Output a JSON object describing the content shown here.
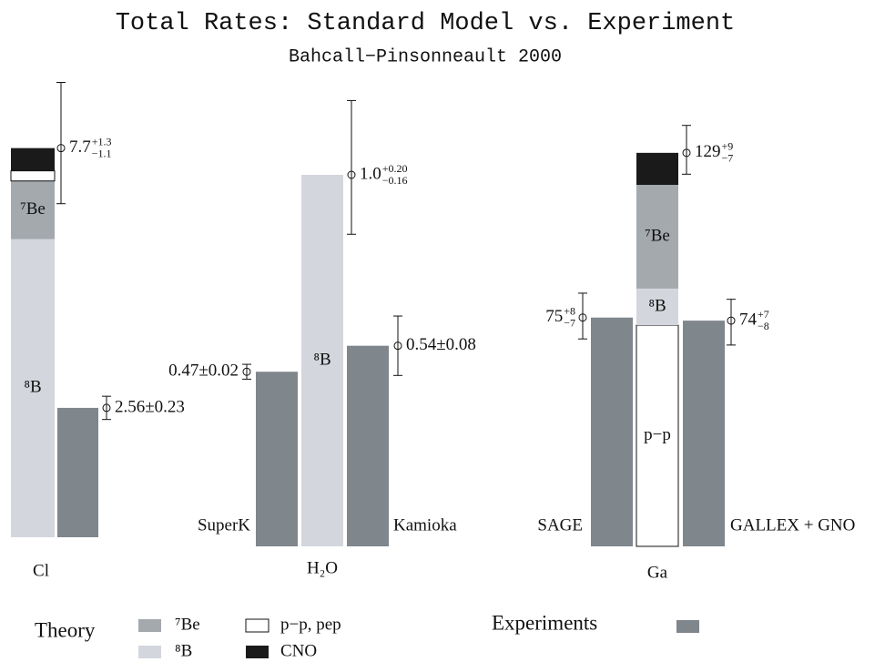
{
  "title": "Total Rates: Standard Model vs. Experiment",
  "subtitle": "Bahcall−Pinsonneault 2000",
  "legend": {
    "theory_label": "Theory",
    "experiments_label": "Experiments",
    "experiments_color": "#7f868c",
    "items": [
      {
        "name": "⁷Be",
        "color": "#a4a9ae"
      },
      {
        "name": "⁸B",
        "color": "#d3d6dc"
      },
      {
        "name": "p−p, pep",
        "color": "#ffffff"
      },
      {
        "name": "CNO",
        "color": "#1a1a1a"
      }
    ]
  },
  "chart_data": [
    {
      "type": "bar",
      "category": "Cl",
      "theory": {
        "segments": [
          {
            "name": "⁸B",
            "color": "#d3d6dc",
            "value": 5.9
          },
          {
            "name": "⁷Be",
            "color": "#a4a9ae",
            "value": 1.15
          },
          {
            "color": "#ffffff",
            "value": 0.2
          },
          {
            "color": "#1a1a1a",
            "value": 0.45
          }
        ],
        "total": 7.7,
        "errors": [
          1.3,
          1.1
        ],
        "error_labels": [
          "+1.3",
          "−1.1"
        ]
      },
      "experiments": [
        {
          "color": "#7f868c",
          "value": 2.56,
          "error": 0.23,
          "value_label": "2.56±0.23"
        }
      ]
    },
    {
      "type": "bar",
      "category": "H₂O",
      "theory": {
        "segments": [
          {
            "name": "⁸B",
            "color": "#d3d6dc",
            "value": 1.0
          }
        ],
        "total": 1.0,
        "value_label": "1.0",
        "errors": [
          0.2,
          0.16
        ],
        "error_labels": [
          "+0.20",
          "−0.16"
        ]
      },
      "experiments": [
        {
          "name": "SuperK",
          "color": "#7f868c",
          "value": 0.47,
          "error": 0.02,
          "value_label": "0.47±0.02"
        },
        {
          "name": "Kamioka",
          "color": "#7f868c",
          "value": 0.54,
          "error": 0.08,
          "value_label": "0.54±0.08"
        }
      ]
    },
    {
      "type": "bar",
      "category": "Ga",
      "theory": {
        "segments": [
          {
            "name": "p−p",
            "color": "#ffffff",
            "value": 72.5
          },
          {
            "name": "⁸B",
            "color": "#d3d6dc",
            "value": 12
          },
          {
            "name": "⁷Be",
            "color": "#a4a9ae",
            "value": 34
          },
          {
            "color": "#1a1a1a",
            "value": 10.5
          }
        ],
        "total": 129,
        "errors": [
          9,
          7
        ],
        "error_labels": [
          "+9",
          "−7"
        ]
      },
      "experiments": [
        {
          "name": "SAGE",
          "color": "#7f868c",
          "value": 75,
          "errors": [
            8,
            7
          ],
          "error_labels": [
            "+8",
            "−7"
          ]
        },
        {
          "name": "GALLEX + GNO",
          "color": "#7f868c",
          "value": 74,
          "errors": [
            7,
            8
          ],
          "error_labels": [
            "+7",
            "−8"
          ]
        }
      ]
    }
  ]
}
